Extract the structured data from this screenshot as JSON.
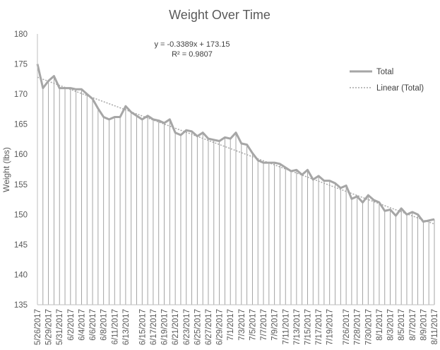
{
  "chart_data": {
    "type": "line",
    "title": "Weight Over Time",
    "ylabel": "Weight (lbs)",
    "xlabel": "",
    "ylim": [
      135,
      180
    ],
    "y_ticks": [
      135,
      140,
      145,
      150,
      155,
      160,
      165,
      170,
      175,
      180
    ],
    "grid": "vertical drop lines at each data point",
    "legend_position": "right",
    "colors": {
      "series": "#a6a6a6",
      "trend": "#a6a6a6",
      "droplines": "#9a9a9a",
      "axis": "#bfbfbf",
      "text": "#595959"
    },
    "x_tick_labels": [
      "5/26/2017",
      "5/29/2017",
      "5/31/2017",
      "6/2/2017",
      "6/4/2017",
      "6/6/2017",
      "6/8/2017",
      "6/11/2017",
      "6/13/2017",
      "6/15/2017",
      "6/17/2017",
      "6/19/2017",
      "6/21/2017",
      "6/23/2017",
      "6/25/2017",
      "6/27/2017",
      "6/29/2017",
      "7/1/2017",
      "7/3/2017",
      "7/5/2017",
      "7/7/2017",
      "7/9/2017",
      "7/11/2017",
      "7/13/2017",
      "7/15/2017",
      "7/17/2017",
      "7/19/2017",
      "7/26/2017",
      "7/28/2017",
      "7/30/2017",
      "8/1/2017",
      "8/3/2017",
      "8/5/2017",
      "8/7/2017",
      "8/9/2017",
      "8/11/2017"
    ],
    "series": [
      {
        "name": "Total",
        "values": [
          175.0,
          171.0,
          172.2,
          173.0,
          171.0,
          171.0,
          171.0,
          170.8,
          170.8,
          170.0,
          169.2,
          167.6,
          166.2,
          165.8,
          166.2,
          166.2,
          168.0,
          167.0,
          166.4,
          165.8,
          166.4,
          165.8,
          165.6,
          165.2,
          165.8,
          163.6,
          163.2,
          164.0,
          163.8,
          163.0,
          163.6,
          162.6,
          162.4,
          162.2,
          162.8,
          162.6,
          163.6,
          161.8,
          161.6,
          160.2,
          159.0,
          158.6,
          158.6,
          158.6,
          158.4,
          157.8,
          157.2,
          157.4,
          156.6,
          157.4,
          155.8,
          156.4,
          155.6,
          155.6,
          155.2,
          154.4,
          154.8,
          152.6,
          153.0,
          152.0,
          153.2,
          152.4,
          152.0,
          150.6,
          150.8,
          149.8,
          151.0,
          150.0,
          150.4,
          150.0,
          148.8,
          149.0,
          149.2
        ]
      }
    ],
    "trendline": {
      "name": "Linear (Total)",
      "slope": -0.3389,
      "intercept": 173.15,
      "r2": 0.9807,
      "equation_label": "y = -0.3389x + 173.15",
      "r2_label": "R² = 0.9807"
    }
  }
}
